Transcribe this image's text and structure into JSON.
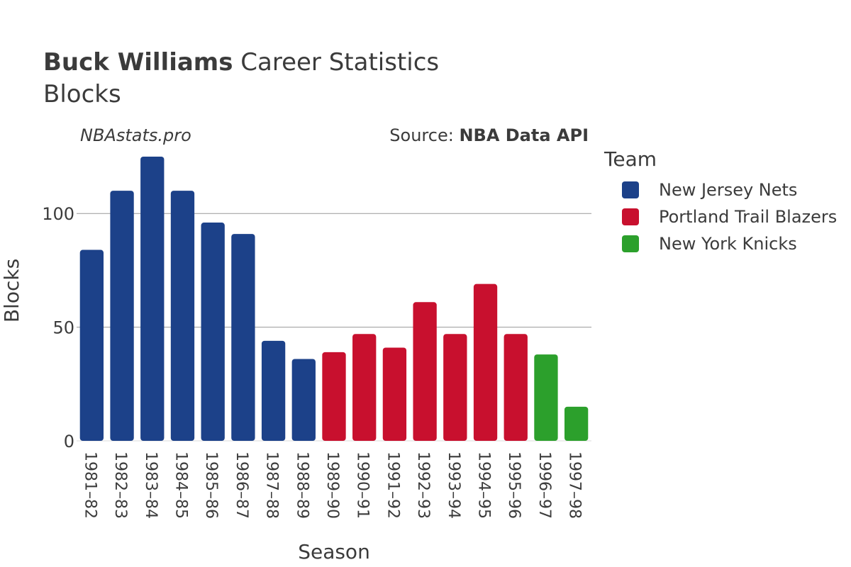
{
  "header": {
    "title_bold": "Buck Williams",
    "title_rest": "Career Statistics",
    "subtitle": "Blocks",
    "watermark": "NBAstats.pro",
    "source_prefix": "Source: ",
    "source_name": "NBA Data API"
  },
  "legend": {
    "title": "Team",
    "items": [
      {
        "label": "New Jersey Nets",
        "color": "#1c4189"
      },
      {
        "label": "Portland Trail Blazers",
        "color": "#c8102e"
      },
      {
        "label": "New York Knicks",
        "color": "#2ca02c"
      }
    ]
  },
  "chart_data": {
    "type": "bar",
    "xlabel": "Season",
    "ylabel": "Blocks",
    "ylim": [
      0,
      125
    ],
    "yticks": [
      0,
      50,
      100
    ],
    "grid": true,
    "legend_position": "right",
    "categories": [
      "1981–82",
      "1982–83",
      "1983–84",
      "1984–85",
      "1985–86",
      "1986–87",
      "1987–88",
      "1988–89",
      "1989–90",
      "1990–91",
      "1991–92",
      "1992–93",
      "1993–94",
      "1994–95",
      "1995–96",
      "1996–97",
      "1997–98"
    ],
    "values": [
      84,
      110,
      125,
      110,
      96,
      91,
      44,
      36,
      39,
      47,
      41,
      61,
      47,
      69,
      47,
      38,
      15
    ],
    "teams": [
      "New Jersey Nets",
      "New Jersey Nets",
      "New Jersey Nets",
      "New Jersey Nets",
      "New Jersey Nets",
      "New Jersey Nets",
      "New Jersey Nets",
      "New Jersey Nets",
      "Portland Trail Blazers",
      "Portland Trail Blazers",
      "Portland Trail Blazers",
      "Portland Trail Blazers",
      "Portland Trail Blazers",
      "Portland Trail Blazers",
      "Portland Trail Blazers",
      "New York Knicks",
      "New York Knicks"
    ]
  }
}
